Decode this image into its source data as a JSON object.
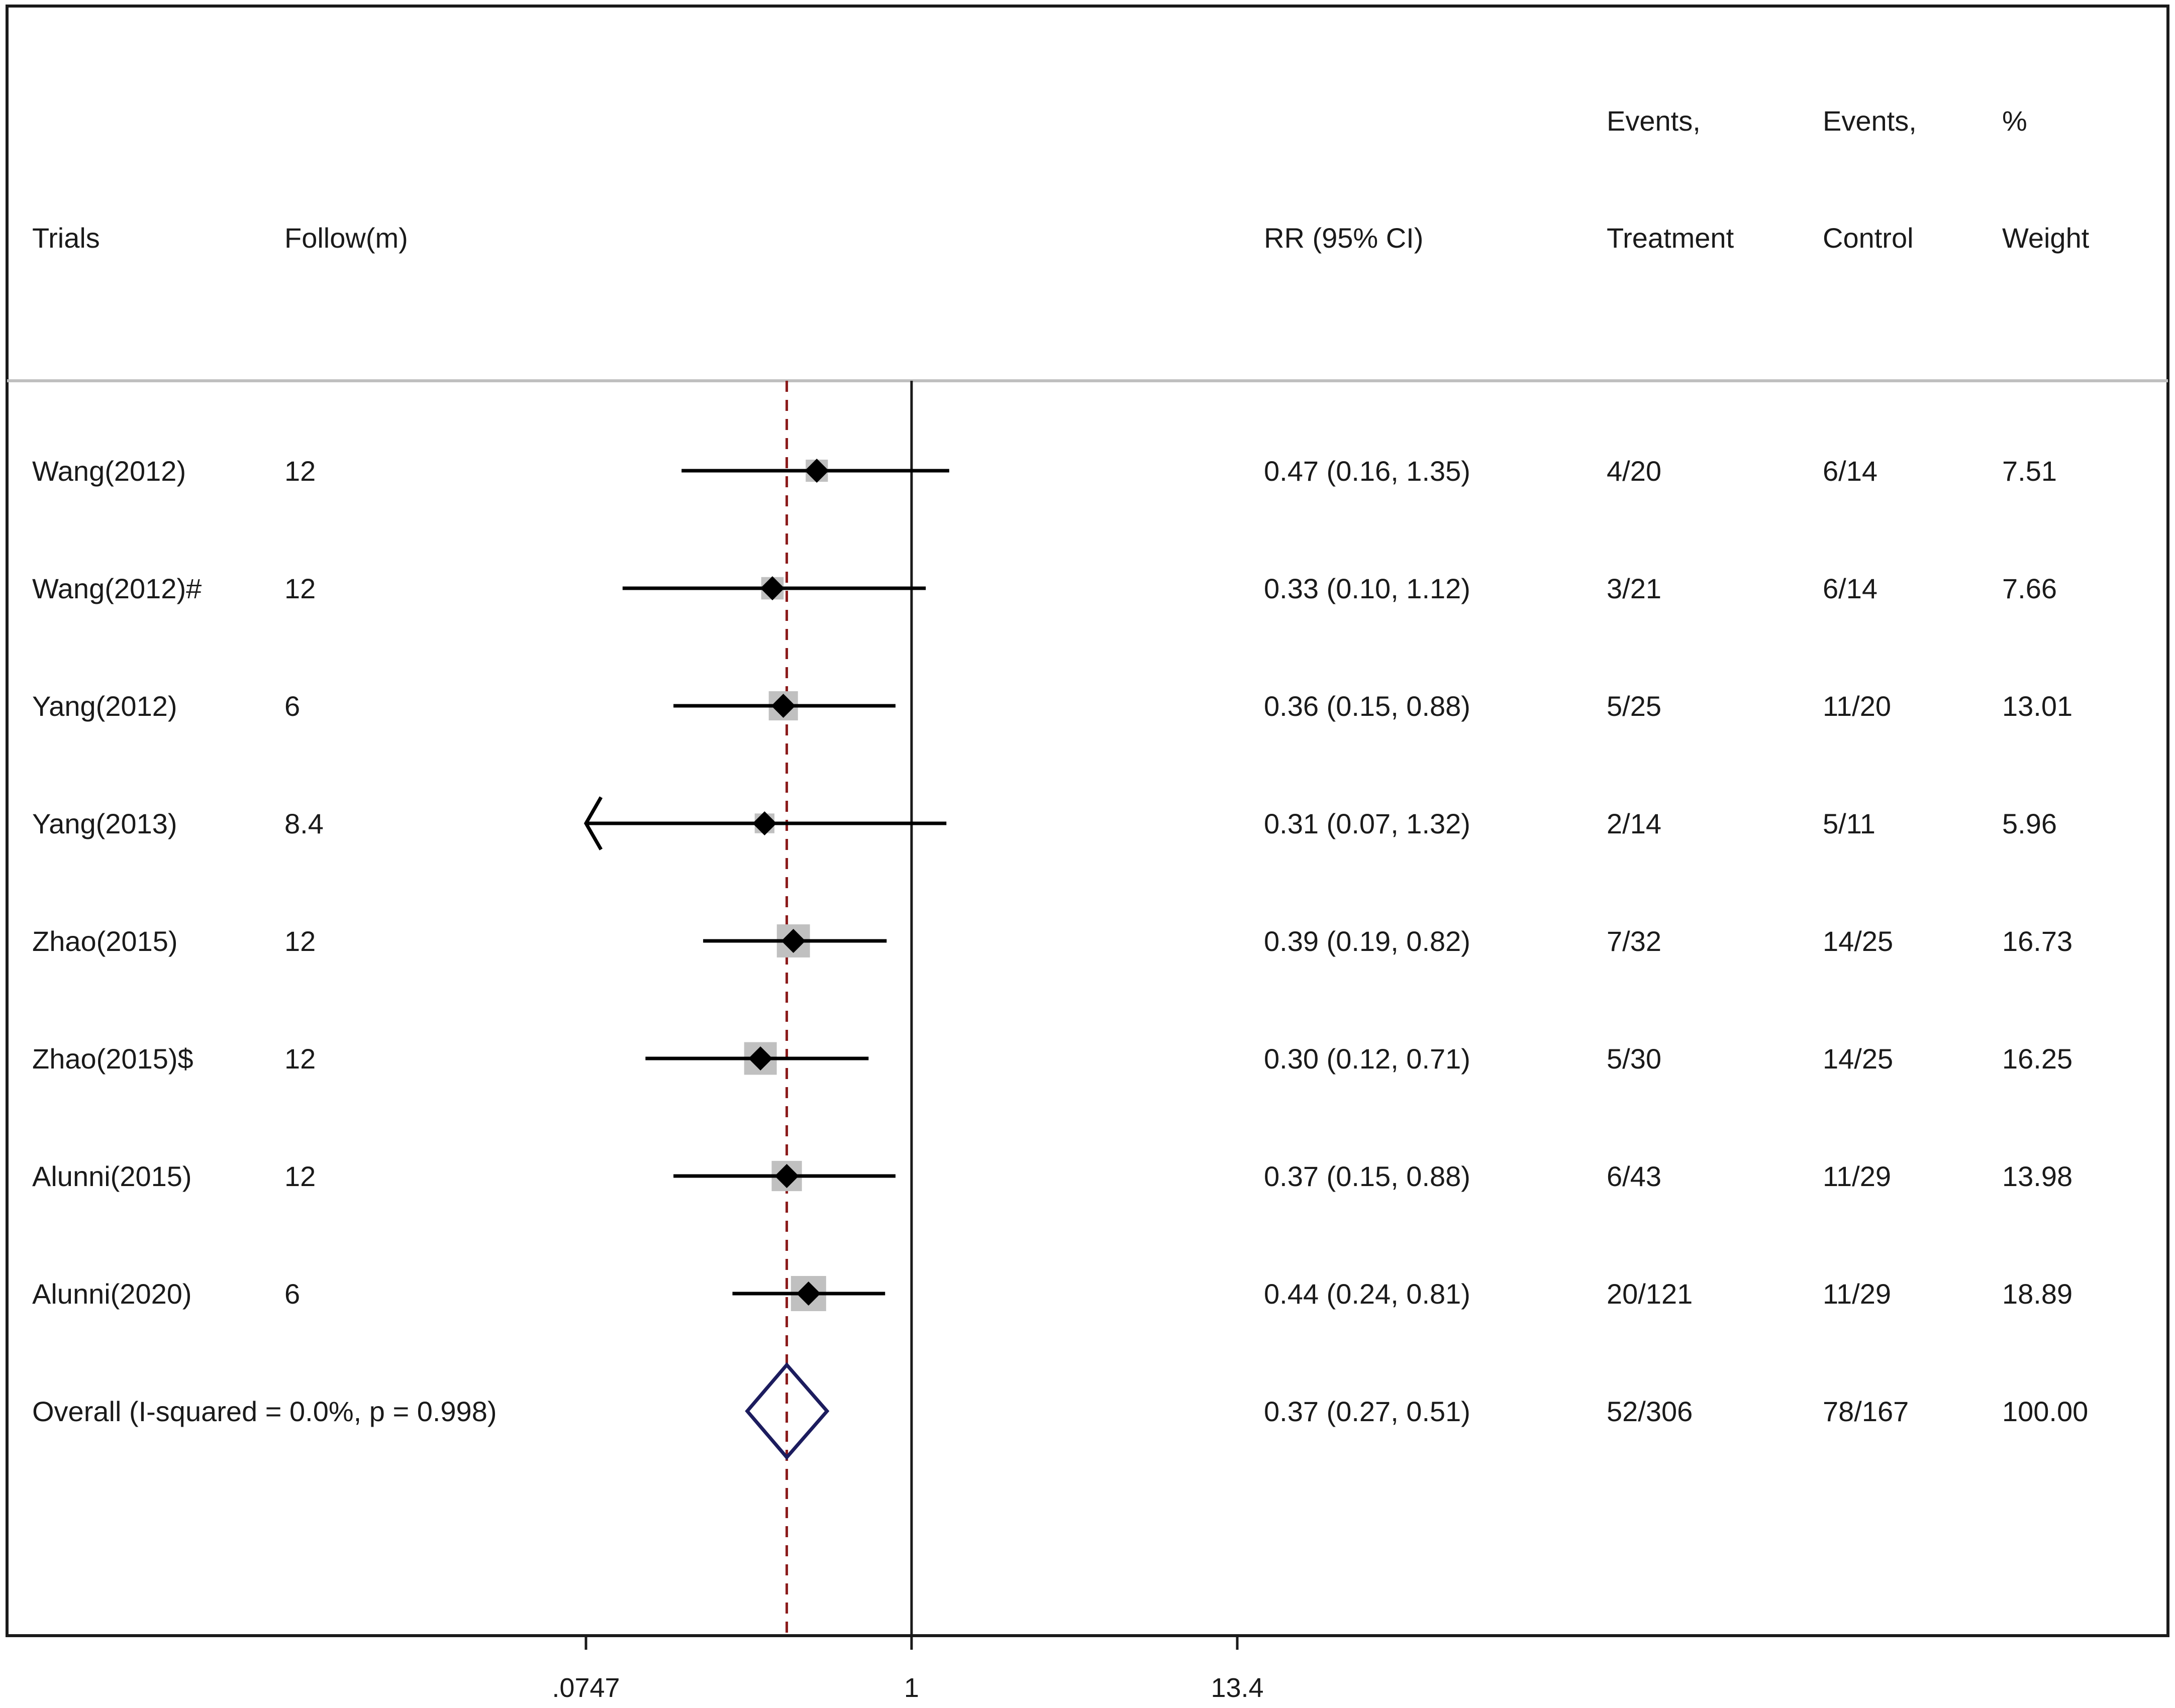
{
  "chart_data": {
    "type": "forest",
    "x_scale": "log",
    "x_ticks": [
      {
        "value": 0.0747,
        "label": ".0747"
      },
      {
        "value": 1,
        "label": "1"
      },
      {
        "value": 13.4,
        "label": "13.4"
      }
    ],
    "xlim": [
      0.0747,
      13.4
    ],
    "reference_value": 1,
    "overall_line_value": 0.37,
    "headers": {
      "trials": "Trials",
      "follow": "Follow(m)",
      "rr": "RR (95% CI)",
      "events_treatment": [
        "Events,",
        "Treatment"
      ],
      "events_control": [
        "Events,",
        "Control"
      ],
      "weight": [
        "%",
        "Weight"
      ]
    },
    "studies": [
      {
        "trial": "Wang(2012)",
        "follow": "12",
        "rr": 0.47,
        "lo": 0.16,
        "hi": 1.35,
        "rr_text": "0.47 (0.16, 1.35)",
        "treatment": "4/20",
        "control": "6/14",
        "weight": "7.51"
      },
      {
        "trial": "Wang(2012)#",
        "follow": "12",
        "rr": 0.33,
        "lo": 0.1,
        "hi": 1.12,
        "rr_text": "0.33 (0.10, 1.12)",
        "treatment": "3/21",
        "control": "6/14",
        "weight": "7.66"
      },
      {
        "trial": "Yang(2012)",
        "follow": "6",
        "rr": 0.36,
        "lo": 0.15,
        "hi": 0.88,
        "rr_text": "0.36 (0.15, 0.88)",
        "treatment": "5/25",
        "control": "11/20",
        "weight": "13.01"
      },
      {
        "trial": "Yang(2013)",
        "follow": "8.4",
        "rr": 0.31,
        "lo": 0.07,
        "hi": 1.32,
        "rr_text": "0.31 (0.07, 1.32)",
        "treatment": "2/14",
        "control": "5/11",
        "weight": "5.96"
      },
      {
        "trial": "Zhao(2015)",
        "follow": "12",
        "rr": 0.39,
        "lo": 0.19,
        "hi": 0.82,
        "rr_text": "0.39 (0.19, 0.82)",
        "treatment": "7/32",
        "control": "14/25",
        "weight": "16.73"
      },
      {
        "trial": "Zhao(2015)$",
        "follow": "12",
        "rr": 0.3,
        "lo": 0.12,
        "hi": 0.71,
        "rr_text": "0.30 (0.12, 0.71)",
        "treatment": "5/30",
        "control": "14/25",
        "weight": "16.25"
      },
      {
        "trial": "Alunni(2015)",
        "follow": "12",
        "rr": 0.37,
        "lo": 0.15,
        "hi": 0.88,
        "rr_text": "0.37 (0.15, 0.88)",
        "treatment": "6/43",
        "control": "11/29",
        "weight": "13.98"
      },
      {
        "trial": "Alunni(2020)",
        "follow": "6",
        "rr": 0.44,
        "lo": 0.24,
        "hi": 0.81,
        "rr_text": "0.44 (0.24, 0.81)",
        "treatment": "20/121",
        "control": "11/29",
        "weight": "18.89"
      }
    ],
    "overall": {
      "label": "Overall  (I-squared = 0.0%, p = 0.998)",
      "rr": 0.37,
      "lo": 0.27,
      "hi": 0.51,
      "rr_text": "0.37 (0.27, 0.51)",
      "treatment": "52/306",
      "control": "78/167",
      "weight": "100.00"
    },
    "colors": {
      "frame": "#1a1a1a",
      "separator": "#bfbfbf",
      "overall_line": "#8b1a1a",
      "overall_diamond": "#1c1c5e",
      "weight_box": "#c0c0c0",
      "point": "#000000"
    }
  }
}
